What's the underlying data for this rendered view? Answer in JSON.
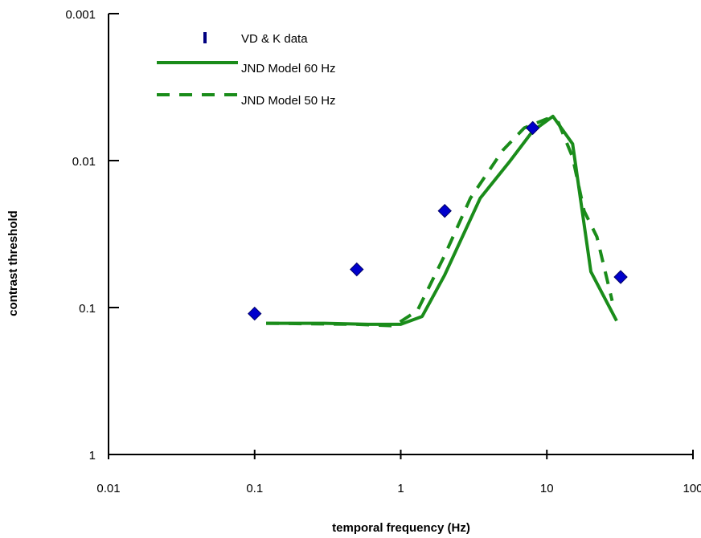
{
  "chart_data": {
    "type": "scatter",
    "xlabel": "temporal frequency (Hz)",
    "ylabel": "contrast threshold",
    "x_scale": "log",
    "y_scale": "log",
    "y_reversed": true,
    "xlim": [
      0.01,
      100
    ],
    "ylim": [
      0.001,
      1
    ],
    "x_ticks": [
      0.01,
      0.1,
      1,
      10,
      100
    ],
    "x_tick_labels": [
      "0.01",
      "0.1",
      "1",
      "10",
      "100"
    ],
    "y_ticks": [
      0.001,
      0.01,
      0.1,
      1
    ],
    "y_tick_labels": [
      "0.001",
      "0.01",
      "0.1",
      "1"
    ],
    "grid": false,
    "legend_position": "top-left",
    "series": [
      {
        "name": "VD & K data",
        "kind": "markers",
        "marker": "diamond",
        "color": "#0000cc",
        "legend_symbol": "vertical-bar",
        "legend_color": "#000080",
        "x": [
          0.1,
          0.5,
          2,
          8,
          32
        ],
        "y": [
          0.11,
          0.055,
          0.022,
          0.006,
          0.062
        ]
      },
      {
        "name": "JND Model 60 Hz",
        "kind": "line",
        "style": "solid",
        "color": "#1a8c1a",
        "x": [
          0.12,
          0.3,
          0.6,
          1.0,
          1.4,
          2.0,
          3.5,
          5.5,
          8.0,
          11.0,
          15.0,
          20.0,
          30.0
        ],
        "y": [
          0.128,
          0.128,
          0.13,
          0.13,
          0.115,
          0.06,
          0.018,
          0.0103,
          0.0063,
          0.005,
          0.0077,
          0.057,
          0.123
        ]
      },
      {
        "name": "JND Model 50 Hz",
        "kind": "line",
        "style": "dashed",
        "color": "#1a8c1a",
        "x": [
          0.12,
          0.5,
          0.9,
          1.3,
          2.0,
          3.0,
          5.0,
          7.0,
          10.0,
          12.0,
          15.0,
          18.0,
          22.0,
          28.0
        ],
        "y": [
          0.128,
          0.13,
          0.133,
          0.105,
          0.044,
          0.018,
          0.0085,
          0.006,
          0.0052,
          0.0055,
          0.0095,
          0.022,
          0.033,
          0.09
        ]
      }
    ]
  }
}
